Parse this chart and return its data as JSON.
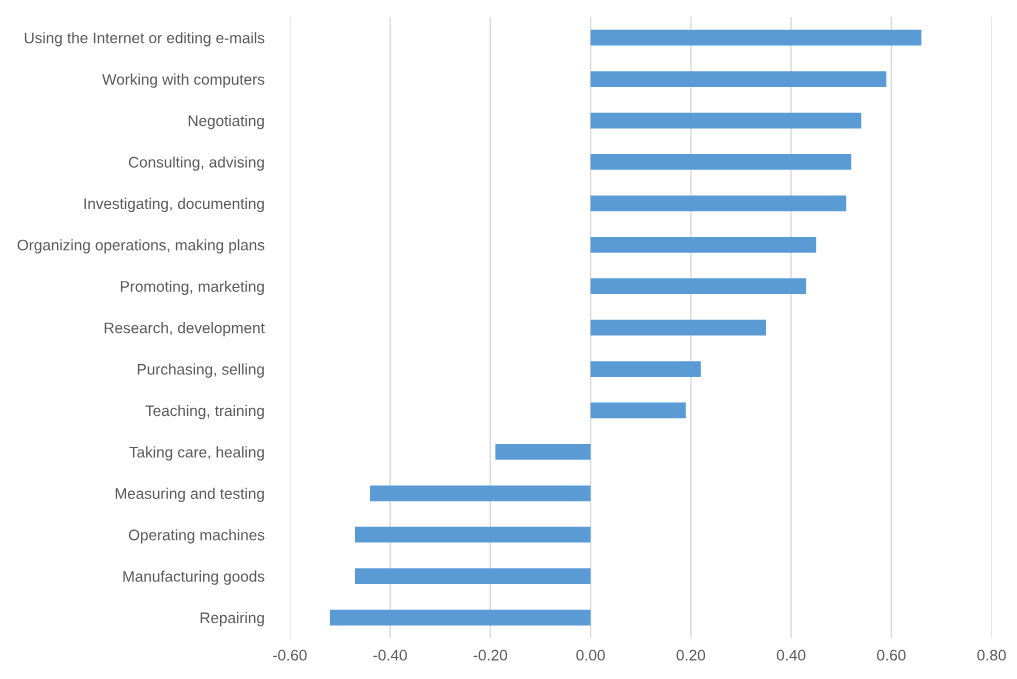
{
  "chart_data": {
    "type": "bar",
    "orientation": "horizontal",
    "categories": [
      "Using the Internet or editing e-mails",
      "Working with computers",
      "Negotiating",
      "Consulting, advising",
      "Investigating, documenting",
      "Organizing operations, making plans",
      "Promoting, marketing",
      "Research, development",
      "Purchasing, selling",
      "Teaching, training",
      "Taking care, healing",
      "Measuring and testing",
      "Operating machines",
      "Manufacturing goods",
      "Repairing"
    ],
    "values": [
      0.66,
      0.59,
      0.54,
      0.52,
      0.51,
      0.45,
      0.43,
      0.35,
      0.22,
      0.19,
      -0.19,
      -0.44,
      -0.47,
      -0.47,
      -0.52
    ],
    "color": "#5b9bd5",
    "xlim": [
      -0.6,
      0.8
    ],
    "xticks": [
      {
        "value": -0.6,
        "label": "-0.60"
      },
      {
        "value": -0.4,
        "label": "-0.40"
      },
      {
        "value": -0.2,
        "label": "-0.20"
      },
      {
        "value": 0,
        "label": "0.00"
      },
      {
        "value": 0.2,
        "label": "0.20"
      },
      {
        "value": 0.4,
        "label": "0.40"
      },
      {
        "value": 0.6,
        "label": "0.60"
      },
      {
        "value": 0.8,
        "label": "0.80"
      }
    ],
    "grid": "x",
    "legend": false
  }
}
